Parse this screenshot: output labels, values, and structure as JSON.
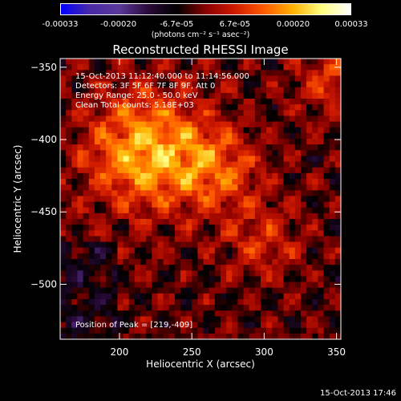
{
  "colorbar": {
    "tick_labels": [
      "-0.00033",
      "-0.00020",
      "-6.7e-05",
      "6.7e-05",
      "0.00020",
      "0.00033"
    ],
    "unit": "(photons cm⁻² s⁻¹ asec⁻²)",
    "range": [
      -0.00033,
      0.00033
    ]
  },
  "chart_data": {
    "type": "heatmap",
    "title": "Reconstructed RHESSI Image",
    "xlabel": "Heliocentric X (arcsec)",
    "ylabel": "Heliocentric Y (arcsec)",
    "xlim": [
      159,
      353
    ],
    "ylim": [
      -538,
      -344
    ],
    "xticks": [
      200,
      250,
      300,
      350
    ],
    "yticks": [
      -350,
      -400,
      -450,
      -500
    ],
    "xtick_labels": [
      "200",
      "250",
      "300",
      "350"
    ],
    "ytick_labels": [
      "−350",
      "−400",
      "−450",
      "−500"
    ],
    "colormap": [
      "#0000ff",
      "#4a2aa8",
      "#5a3a9a",
      "#2a0a3a",
      "#000000",
      "#8a0000",
      "#d01a00",
      "#ff5a00",
      "#ffb000",
      "#ffff80",
      "#ffffff"
    ],
    "annotations": [
      "15-Oct-2013 11:12:40.000 to 11:14:56.000",
      "Detectors: 3F 5F 6F 7F 8F 9F, Att 0",
      "Energy Range: 25.0 - 50.0 keV",
      "Clean     Total counts: 5.18E+03"
    ],
    "peak_label": "Position of Peak = [219,-409]",
    "peak": [
      219,
      -409
    ]
  },
  "timestamp": "15-Oct-2013 17:46"
}
